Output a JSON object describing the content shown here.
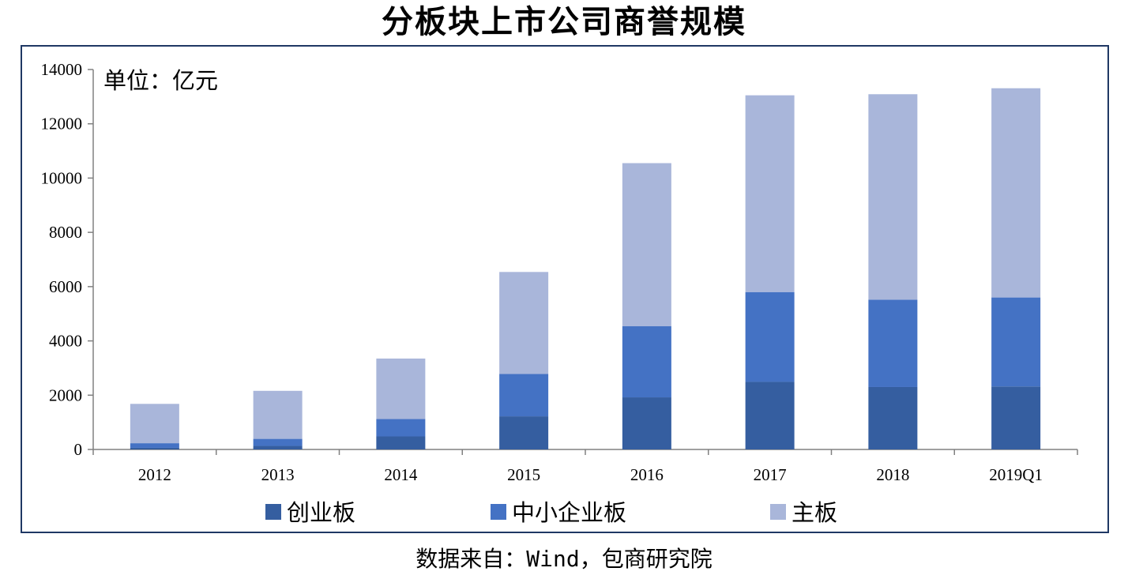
{
  "title": "分板块上市公司商誉规模",
  "unit_label": "单位：亿元",
  "source": "数据来自：Wind，包商研究院",
  "colors": {
    "chuangyeban": "#355ea0",
    "zhongxiao": "#4472c4",
    "zhuban": "#a9b6da",
    "frame": "#1f3864"
  },
  "chart_data": {
    "type": "bar",
    "stacked": true,
    "categories": [
      "2012",
      "2013",
      "2014",
      "2015",
      "2016",
      "2017",
      "2018",
      "2019Q1"
    ],
    "series": [
      {
        "name": "创业板",
        "color": "#355ea0",
        "values": [
          60,
          130,
          480,
          1220,
          1920,
          2490,
          2300,
          2320
        ]
      },
      {
        "name": "中小企业板",
        "color": "#4472c4",
        "values": [
          170,
          260,
          640,
          1560,
          2620,
          3310,
          3220,
          3280
        ]
      },
      {
        "name": "主板",
        "color": "#a9b6da",
        "values": [
          1450,
          1770,
          2230,
          3760,
          6010,
          7250,
          7570,
          7710
        ]
      }
    ],
    "ylim": [
      0,
      14000
    ],
    "yticks": [
      0,
      2000,
      4000,
      6000,
      8000,
      10000,
      12000,
      14000
    ],
    "grid": false,
    "legend_position": "bottom"
  }
}
